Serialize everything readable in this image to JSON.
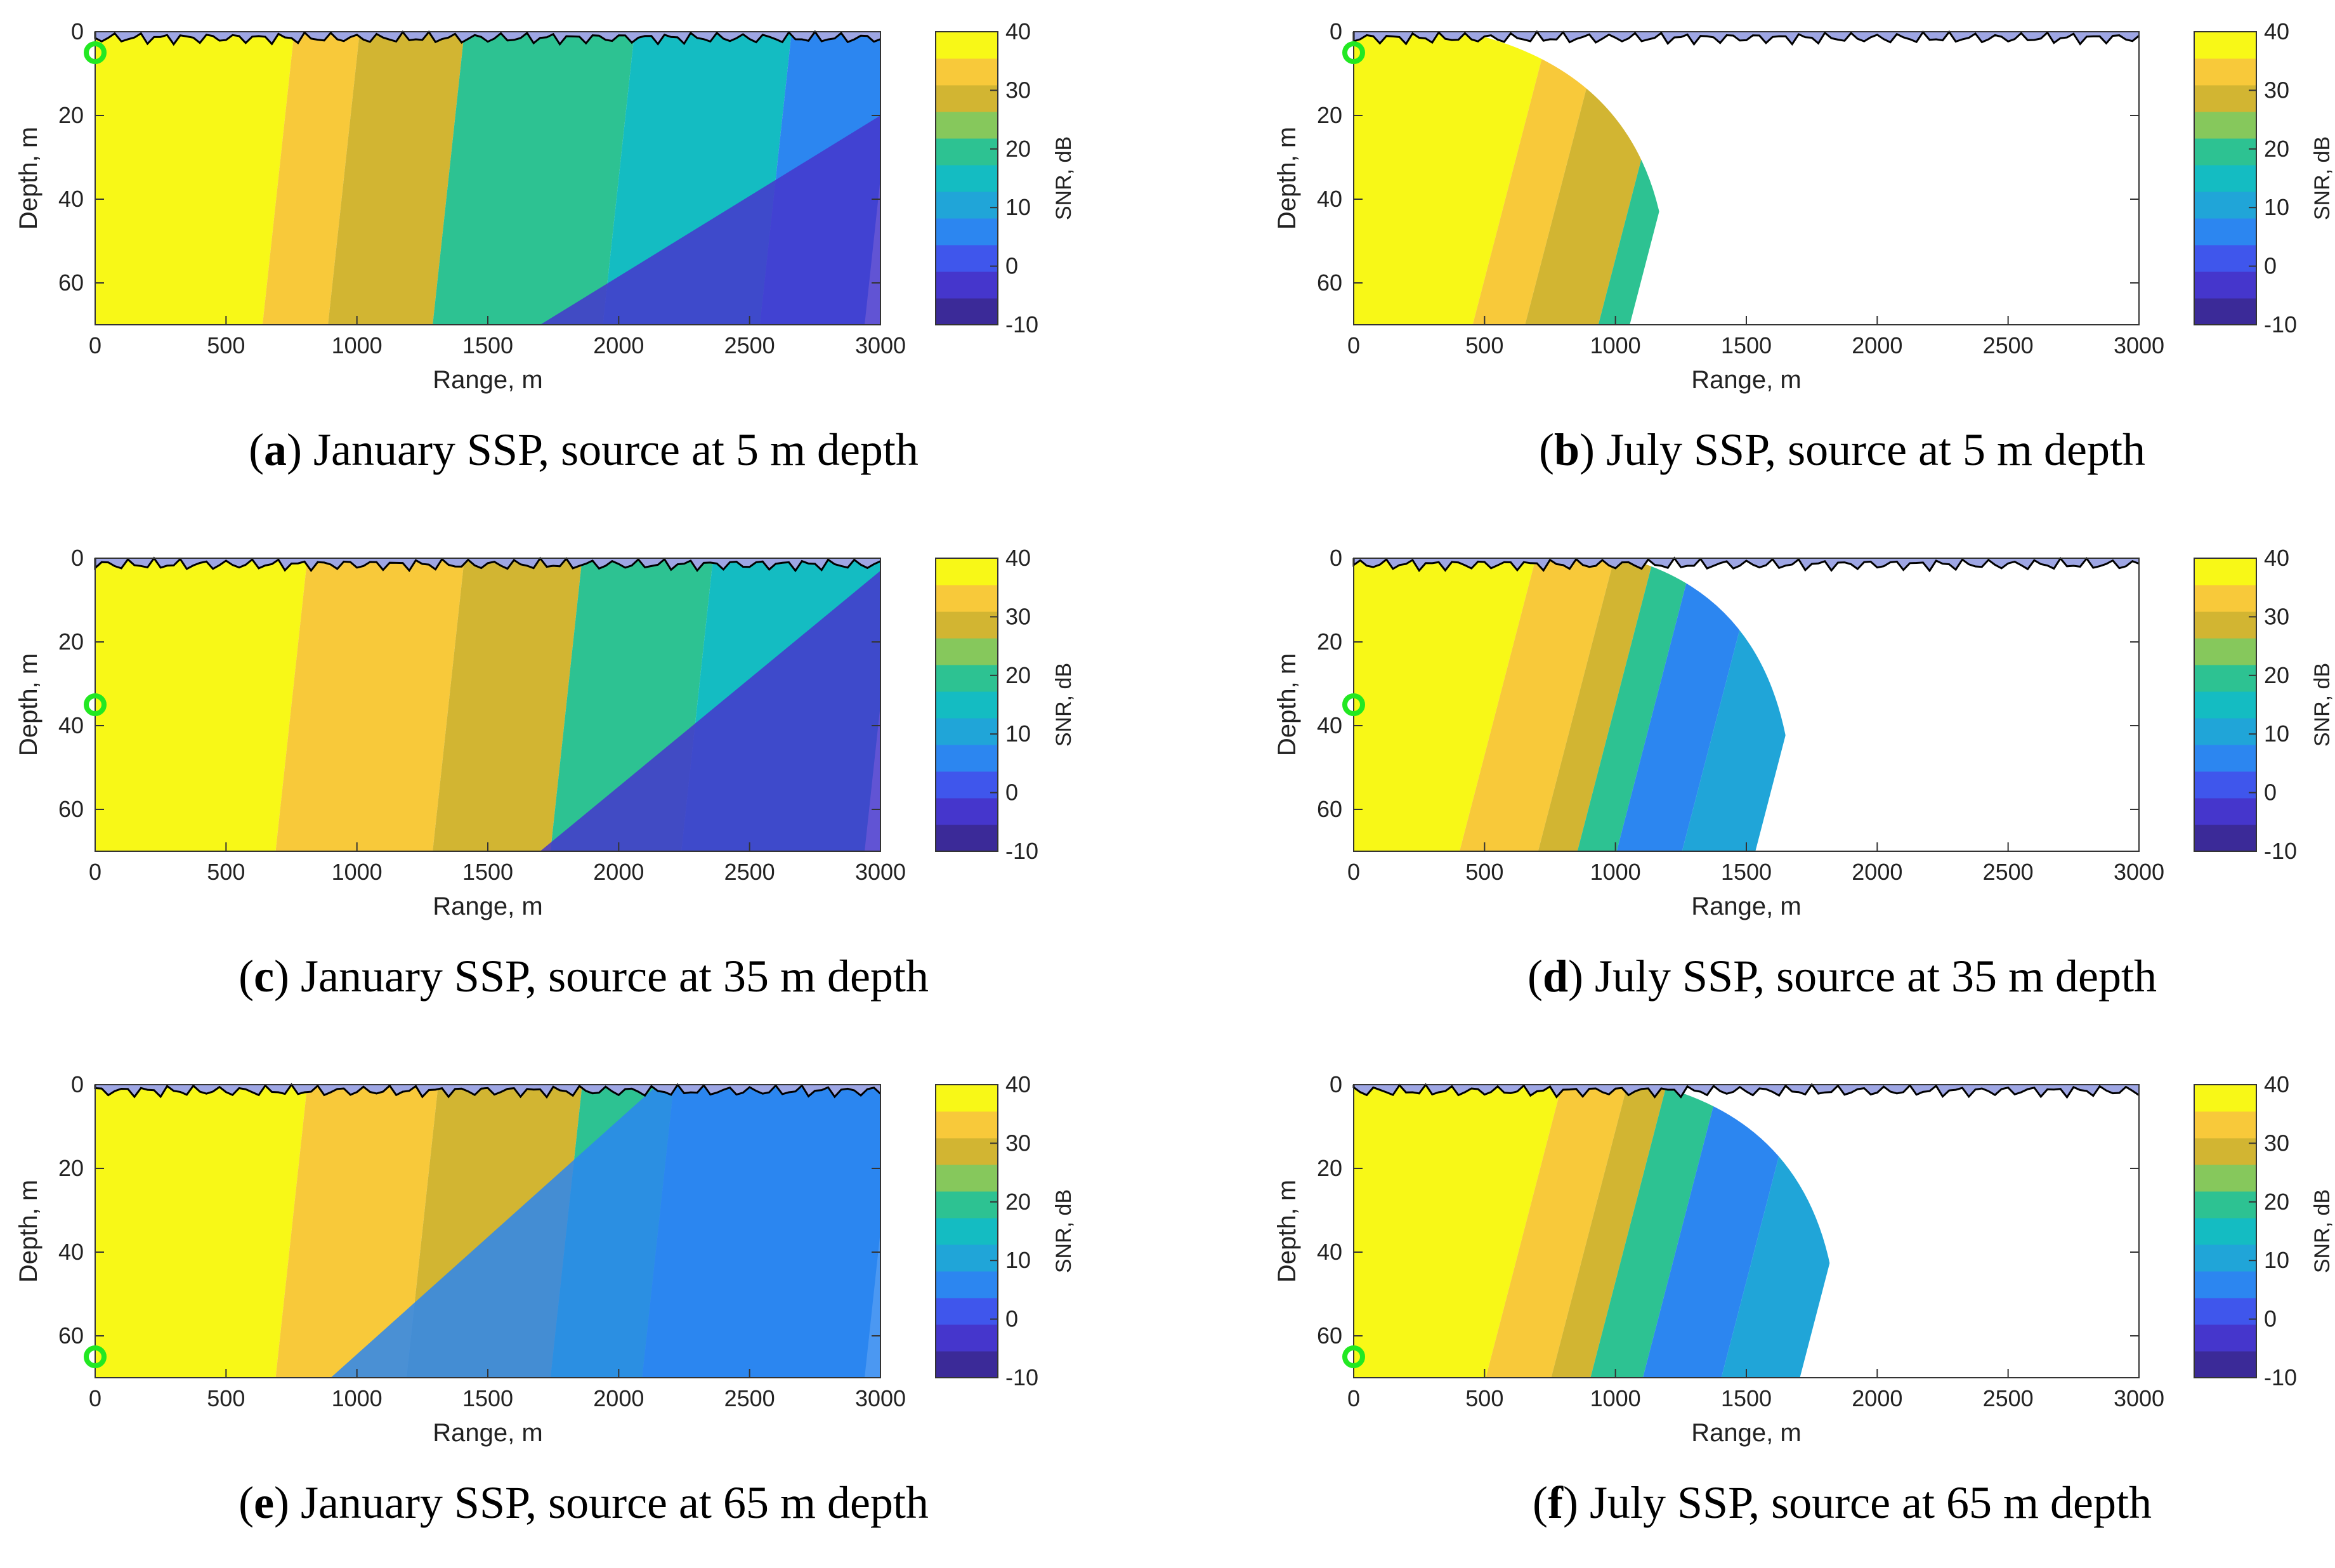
{
  "figure": {
    "colorbar": {
      "label": "SNR, dB",
      "ticks": [
        40,
        30,
        20,
        10,
        0,
        -10
      ],
      "levels": [
        -10,
        -5,
        0,
        5,
        10,
        15,
        20,
        25,
        30,
        35,
        40
      ],
      "colors": [
        "#3b2a98",
        "#4536cc",
        "#3f56ec",
        "#2c86f0",
        "#20a5d8",
        "#14bcc2",
        "#2dc292",
        "#86c85c",
        "#d2b532",
        "#f8c93a",
        "#f8f817"
      ],
      "range": [
        -10,
        40
      ]
    },
    "surface_color": "#9ea6e4",
    "source_marker_color": "#22e822"
  },
  "panels": [
    {
      "id": "a",
      "caption_letter": "a",
      "caption_text": ") January SSP, source at 5 m depth",
      "source_depth": 5,
      "month": "January"
    },
    {
      "id": "b",
      "caption_letter": "b",
      "caption_text": ") July SSP, source at 5 m depth",
      "source_depth": 5,
      "month": "July"
    },
    {
      "id": "c",
      "caption_letter": "c",
      "caption_text": ") January SSP, source at 35 m depth",
      "source_depth": 35,
      "month": "January"
    },
    {
      "id": "d",
      "caption_letter": "d",
      "caption_text": ") July SSP, source at 35 m depth",
      "source_depth": 35,
      "month": "July"
    },
    {
      "id": "e",
      "caption_letter": "e",
      "caption_text": ") January SSP, source at 65 m depth",
      "source_depth": 65,
      "month": "January"
    },
    {
      "id": "f",
      "caption_letter": "f",
      "caption_text": ") July SSP, source at 65 m depth",
      "source_depth": 65,
      "month": "July"
    }
  ],
  "chart_data": [
    {
      "id": "a",
      "type": "heatmap",
      "title": "",
      "xlabel": "Range, m",
      "ylabel": "Depth, m",
      "xlim": [
        0,
        3000
      ],
      "ylim": [
        70,
        0
      ],
      "xticks": [
        0,
        500,
        1000,
        1500,
        2000,
        2500,
        3000
      ],
      "yticks": [
        0,
        20,
        40,
        60
      ],
      "source": {
        "range": 0,
        "depth": 5
      },
      "snr_bands": [
        {
          "range_from": 0,
          "range_to": 700,
          "snr": 40
        },
        {
          "range_from": 700,
          "range_to": 950,
          "snr": 35
        },
        {
          "range_from": 950,
          "range_to": 1350,
          "snr": 30
        },
        {
          "range_from": 1350,
          "range_to": 2000,
          "snr": 22
        },
        {
          "range_from": 2000,
          "range_to": 2600,
          "snr": 15
        },
        {
          "range_from": 2600,
          "range_to": 3000,
          "snr": 8
        }
      ]
    },
    {
      "id": "b",
      "type": "heatmap",
      "title": "",
      "xlabel": "Range, m",
      "ylabel": "Depth, m",
      "xlim": [
        0,
        3000
      ],
      "ylim": [
        70,
        0
      ],
      "xticks": [
        0,
        500,
        1000,
        1500,
        2000,
        2500,
        3000
      ],
      "yticks": [
        0,
        20,
        40,
        60
      ],
      "source": {
        "range": 0,
        "depth": 5
      },
      "snr_bands": [
        {
          "range_from": 0,
          "range_to": 600,
          "snr": 40
        },
        {
          "range_from": 600,
          "range_to": 800,
          "snr": 35
        },
        {
          "range_from": 800,
          "range_to": 1080,
          "snr": 30
        },
        {
          "range_from": 1080,
          "range_to": 1200,
          "snr": 22
        }
      ]
    },
    {
      "id": "c",
      "type": "heatmap",
      "title": "",
      "xlabel": "Range, m",
      "ylabel": "Depth, m",
      "xlim": [
        0,
        3000
      ],
      "ylim": [
        70,
        0
      ],
      "xticks": [
        0,
        500,
        1000,
        1500,
        2000,
        2500,
        3000
      ],
      "yticks": [
        0,
        20,
        40,
        60
      ],
      "source": {
        "range": 0,
        "depth": 35
      },
      "snr_bands": [
        {
          "range_from": 0,
          "range_to": 750,
          "snr": 40
        },
        {
          "range_from": 750,
          "range_to": 1350,
          "snr": 35
        },
        {
          "range_from": 1350,
          "range_to": 1800,
          "snr": 30
        },
        {
          "range_from": 1800,
          "range_to": 2300,
          "snr": 20
        },
        {
          "range_from": 2300,
          "range_to": 3000,
          "snr": 15
        }
      ]
    },
    {
      "id": "d",
      "type": "heatmap",
      "title": "",
      "xlabel": "Range, m",
      "ylabel": "Depth, m",
      "xlim": [
        0,
        3000
      ],
      "ylim": [
        70,
        0
      ],
      "xticks": [
        0,
        500,
        1000,
        1500,
        2000,
        2500,
        3000
      ],
      "yticks": [
        0,
        20,
        40,
        60
      ],
      "source": {
        "range": 0,
        "depth": 35
      },
      "snr_bands": [
        {
          "range_from": 0,
          "range_to": 550,
          "snr": 40
        },
        {
          "range_from": 550,
          "range_to": 850,
          "snr": 35
        },
        {
          "range_from": 850,
          "range_to": 1000,
          "snr": 30
        },
        {
          "range_from": 1000,
          "range_to": 1150,
          "snr": 22
        },
        {
          "range_from": 1150,
          "range_to": 1400,
          "snr": 8
        },
        {
          "range_from": 1400,
          "range_to": 1680,
          "snr": 13
        }
      ]
    },
    {
      "id": "e",
      "type": "heatmap",
      "title": "",
      "xlabel": "Range, m",
      "ylabel": "Depth, m",
      "xlim": [
        0,
        3000
      ],
      "ylim": [
        70,
        0
      ],
      "xticks": [
        0,
        500,
        1000,
        1500,
        2000,
        2500,
        3000
      ],
      "yticks": [
        0,
        20,
        40,
        60
      ],
      "source": {
        "range": 0,
        "depth": 65
      },
      "snr_bands": [
        {
          "range_from": 0,
          "range_to": 750,
          "snr": 40
        },
        {
          "range_from": 750,
          "range_to": 1250,
          "snr": 35
        },
        {
          "range_from": 1250,
          "range_to": 1800,
          "snr": 30
        },
        {
          "range_from": 1800,
          "range_to": 2150,
          "snr": 22
        },
        {
          "range_from": 2150,
          "range_to": 3000,
          "snr": 5
        }
      ]
    },
    {
      "id": "f",
      "type": "heatmap",
      "title": "",
      "xlabel": "Range, m",
      "ylabel": "Depth, m",
      "xlim": [
        0,
        3000
      ],
      "ylim": [
        70,
        0
      ],
      "xticks": [
        0,
        500,
        1000,
        1500,
        2000,
        2500,
        3000
      ],
      "yticks": [
        0,
        20,
        40,
        60
      ],
      "source": {
        "range": 0,
        "depth": 65
      },
      "snr_bands": [
        {
          "range_from": 0,
          "range_to": 650,
          "snr": 40
        },
        {
          "range_from": 650,
          "range_to": 900,
          "snr": 35
        },
        {
          "range_from": 900,
          "range_to": 1050,
          "snr": 30
        },
        {
          "range_from": 1050,
          "range_to": 1250,
          "snr": 22
        },
        {
          "range_from": 1250,
          "range_to": 1550,
          "snr": 8
        },
        {
          "range_from": 1550,
          "range_to": 1850,
          "snr": 13
        }
      ]
    }
  ]
}
